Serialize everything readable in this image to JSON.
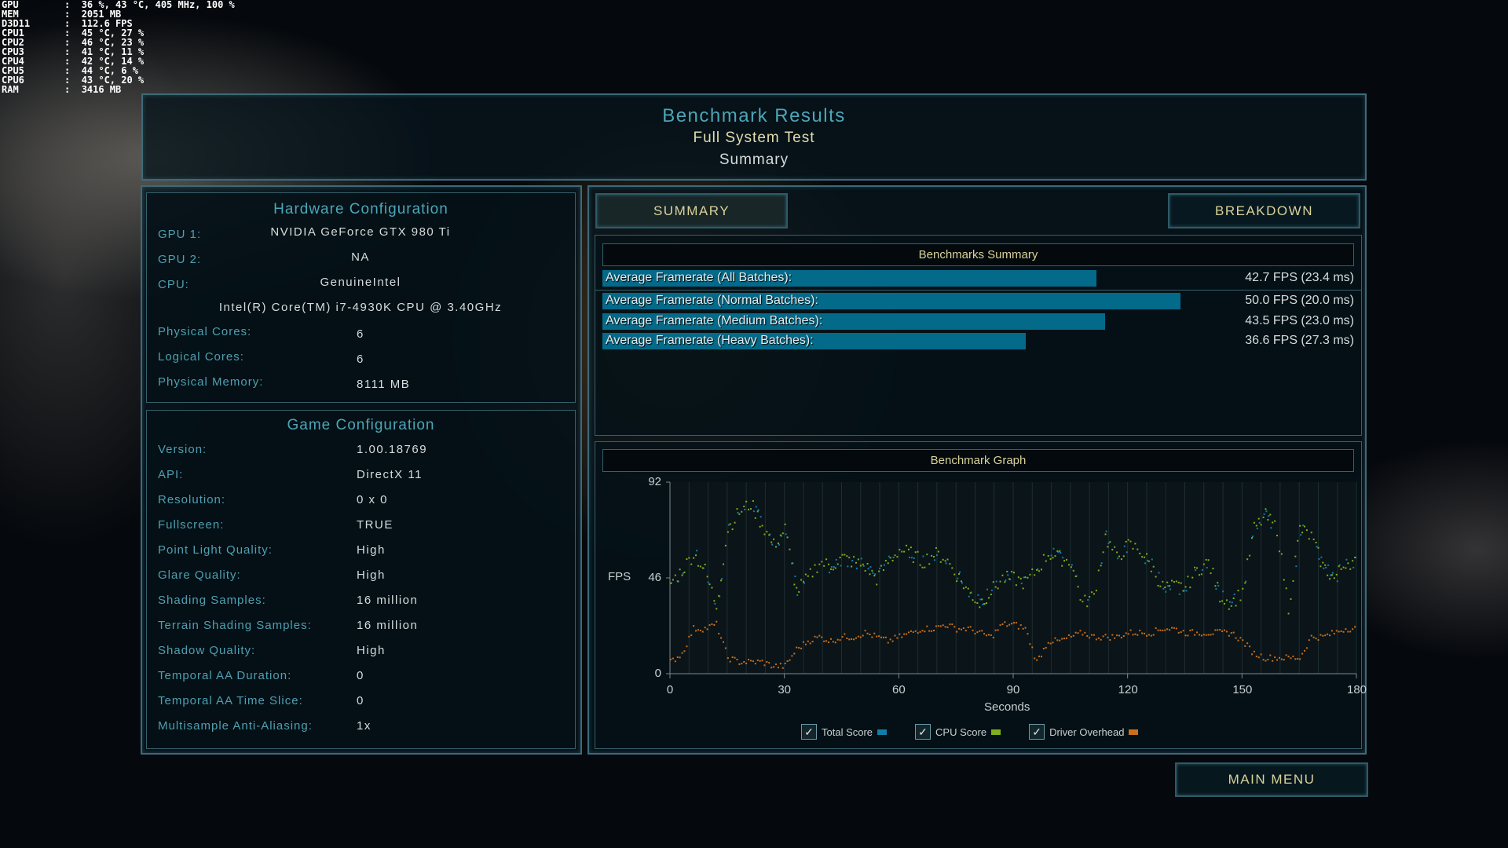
{
  "osd": [
    {
      "k": "GPU",
      "v": "36 %, 43 °C, 405 MHz, 100 %"
    },
    {
      "k": "MEM",
      "v": "2051 MB"
    },
    {
      "k": "D3D11",
      "v": "112.6 FPS"
    },
    {
      "k": "CPU1",
      "v": "45 °C, 27 %"
    },
    {
      "k": "CPU2",
      "v": "46 °C, 23 %"
    },
    {
      "k": "CPU3",
      "v": "41 °C, 11 %"
    },
    {
      "k": "CPU4",
      "v": "42 °C, 14 %"
    },
    {
      "k": "CPU5",
      "v": "44 °C, 6 %"
    },
    {
      "k": "CPU6",
      "v": "43 °C, 20 %"
    },
    {
      "k": "RAM",
      "v": "3416 MB"
    }
  ],
  "header": {
    "title": "Benchmark Results",
    "subtitle": "Full System Test",
    "mode": "Summary"
  },
  "hardware": {
    "title": "Hardware Configuration",
    "gpu1": {
      "label": "GPU 1:",
      "value": "NVIDIA GeForce GTX 980 Ti"
    },
    "gpu2": {
      "label": "GPU 2:",
      "value": "NA"
    },
    "cpu": {
      "label": "CPU:",
      "value": "GenuineIntel",
      "model": "Intel(R) Core(TM) i7-4930K CPU @ 3.40GHz"
    },
    "rows": [
      {
        "label": "Physical Cores:",
        "value": "6"
      },
      {
        "label": "Logical Cores:",
        "value": "6"
      },
      {
        "label": "Physical Memory:",
        "value": "8111  MB"
      }
    ]
  },
  "game": {
    "title": "Game Configuration",
    "rows": [
      {
        "label": "Version:",
        "value": "1.00.18769"
      },
      {
        "label": "API:",
        "value": "DirectX 11"
      },
      {
        "label": "Resolution:",
        "value": "0 x 0"
      },
      {
        "label": "Fullscreen:",
        "value": "TRUE"
      },
      {
        "label": "Point Light Quality:",
        "value": "High"
      },
      {
        "label": "Glare Quality:",
        "value": "High"
      },
      {
        "label": "Shading Samples:",
        "value": "16 million"
      },
      {
        "label": "Terrain Shading Samples:",
        "value": "16 million"
      },
      {
        "label": "Shadow Quality:",
        "value": "High"
      },
      {
        "label": "Temporal AA Duration:",
        "value": "0"
      },
      {
        "label": "Temporal AA Time Slice:",
        "value": "0"
      },
      {
        "label": "Multisample Anti-Aliasing:",
        "value": "1x"
      }
    ]
  },
  "tabs": {
    "summary": "SUMMARY",
    "breakdown": "BREAKDOWN"
  },
  "summary": {
    "title": "Benchmarks Summary",
    "rows": [
      {
        "label": "Average Framerate (All Batches):",
        "fps": 42.7,
        "value": "42.7 FPS (23.4 ms)"
      },
      {
        "label": "Average Framerate (Normal Batches):",
        "fps": 50.0,
        "value": "50.0 FPS (20.0 ms)"
      },
      {
        "label": "Average Framerate (Medium Batches):",
        "fps": 43.5,
        "value": "43.5 FPS (23.0 ms)"
      },
      {
        "label": "Average Framerate (Heavy Batches):",
        "fps": 36.6,
        "value": "36.6 FPS (27.3 ms)"
      }
    ]
  },
  "main_menu": "MAIN MENU",
  "chart_data": {
    "type": "scatter",
    "title": "Benchmark Graph",
    "xlabel": "Seconds",
    "ylabel": "FPS",
    "xlim": [
      0,
      180
    ],
    "ylim": [
      0,
      92
    ],
    "xticks": [
      "0",
      "30",
      "60",
      "90",
      "120",
      "150",
      "180"
    ],
    "yticks": [
      "0",
      "46",
      "92"
    ],
    "grid": true,
    "legend": "bottom",
    "x": [
      0,
      3,
      6,
      9,
      12,
      15,
      18,
      21,
      24,
      27,
      30,
      33,
      36,
      39,
      42,
      45,
      48,
      51,
      54,
      57,
      60,
      63,
      66,
      69,
      72,
      75,
      78,
      81,
      84,
      87,
      90,
      93,
      96,
      99,
      102,
      105,
      108,
      111,
      114,
      117,
      120,
      123,
      126,
      129,
      132,
      135,
      138,
      141,
      144,
      147,
      150,
      153,
      156,
      159,
      162,
      165,
      168,
      171,
      174,
      177,
      180
    ],
    "series": [
      {
        "name": "Total Score",
        "color": "#0f7ea8",
        "checked": true,
        "values": [
          44,
          50,
          58,
          50,
          33,
          70,
          78,
          82,
          72,
          62,
          70,
          40,
          46,
          54,
          52,
          56,
          54,
          52,
          46,
          54,
          60,
          58,
          54,
          58,
          56,
          48,
          40,
          34,
          40,
          46,
          46,
          44,
          50,
          58,
          56,
          54,
          34,
          38,
          66,
          56,
          62,
          60,
          52,
          42,
          42,
          42,
          50,
          54,
          38,
          34,
          40,
          70,
          76,
          70,
          32,
          70,
          66,
          52,
          46,
          54,
          54
        ]
      },
      {
        "name": "CPU Score",
        "color": "#7fae1a",
        "checked": true,
        "values": [
          44,
          50,
          58,
          50,
          33,
          70,
          78,
          82,
          72,
          62,
          70,
          40,
          46,
          54,
          52,
          56,
          54,
          52,
          46,
          54,
          60,
          58,
          54,
          58,
          56,
          48,
          40,
          34,
          40,
          46,
          46,
          44,
          50,
          58,
          56,
          54,
          34,
          38,
          66,
          56,
          62,
          60,
          52,
          42,
          42,
          42,
          50,
          54,
          38,
          34,
          40,
          70,
          76,
          70,
          32,
          70,
          66,
          52,
          46,
          54,
          54
        ]
      },
      {
        "name": "Driver Overhead",
        "color": "#c8701c",
        "checked": true,
        "values": [
          6,
          10,
          22,
          22,
          24,
          8,
          6,
          6,
          6,
          4,
          4,
          12,
          16,
          18,
          16,
          18,
          18,
          20,
          18,
          16,
          18,
          20,
          22,
          22,
          24,
          22,
          22,
          20,
          18,
          24,
          24,
          22,
          6,
          16,
          16,
          18,
          20,
          18,
          18,
          18,
          20,
          20,
          20,
          22,
          22,
          20,
          20,
          20,
          20,
          20,
          16,
          10,
          8,
          8,
          8,
          8,
          18,
          18,
          20,
          22,
          22
        ]
      }
    ]
  }
}
